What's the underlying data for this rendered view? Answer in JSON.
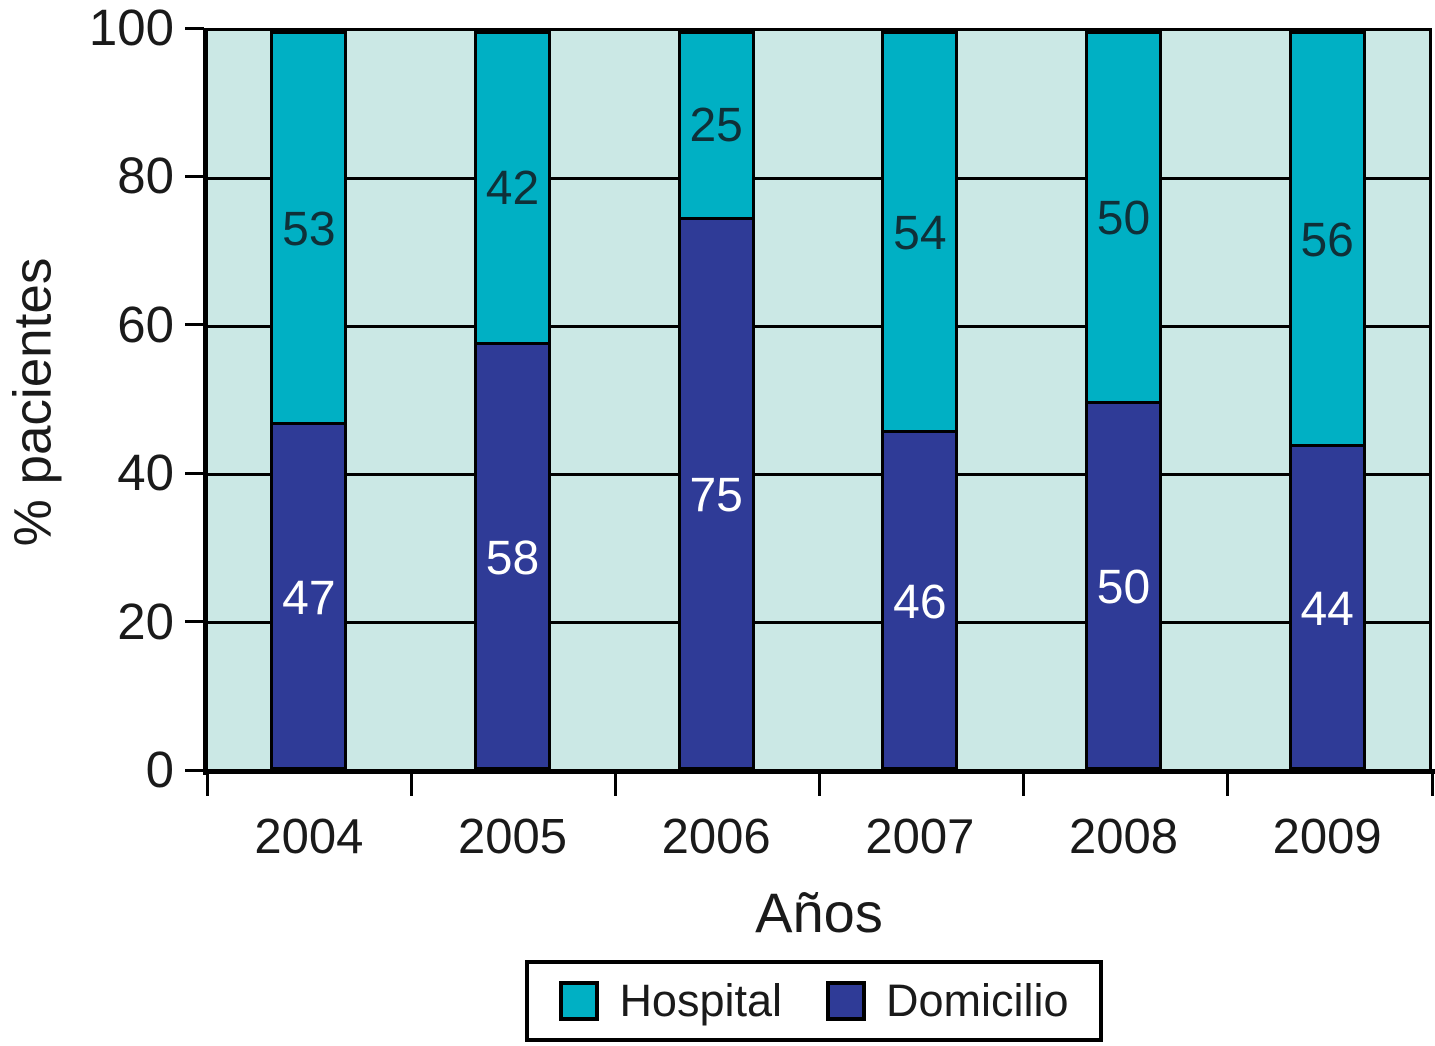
{
  "chart_data": {
    "type": "bar",
    "stacked": true,
    "title": "",
    "xlabel": "Años",
    "ylabel": "% pacientes",
    "categories": [
      "2004",
      "2005",
      "2006",
      "2007",
      "2008",
      "2009"
    ],
    "series": [
      {
        "name": "Domicilio",
        "color": "#2F3B97",
        "label_color": "#ffffff",
        "values": [
          47,
          58,
          75,
          46,
          50,
          44
        ]
      },
      {
        "name": "Hospital",
        "color": "#00B0C4",
        "label_color": "#0F3038",
        "values": [
          53,
          42,
          25,
          54,
          50,
          56
        ]
      }
    ],
    "ylim": [
      0,
      100
    ],
    "yticks": [
      0,
      20,
      40,
      60,
      80,
      100
    ],
    "ytick_labels": [
      "0",
      "20",
      "40",
      "60",
      "80",
      "100"
    ],
    "grid": true,
    "grid_color": "#000000",
    "plot_bg": "#CBE8E5",
    "axis_color": "#000000",
    "legend_position": "bottom",
    "legend": [
      {
        "label": "Hospital",
        "series": "Hospital"
      },
      {
        "label": "Domicilio",
        "series": "Domicilio"
      }
    ]
  }
}
